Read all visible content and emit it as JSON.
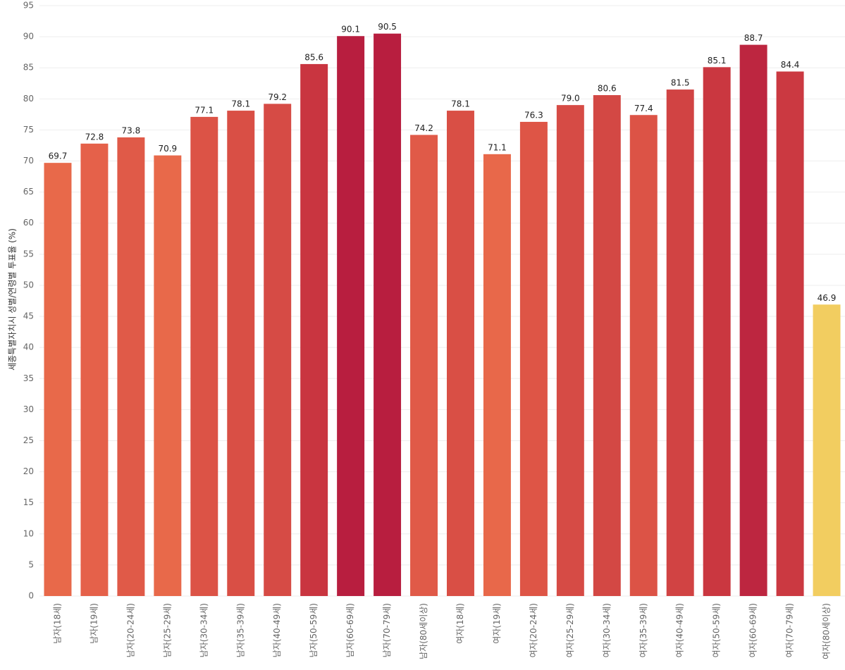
{
  "chart_data": {
    "type": "bar",
    "y_label": "세종특별자치시 성별/연령별 투표율 (%)",
    "categories": [
      "남자(18세)",
      "남자(19세)",
      "남자(20-24세)",
      "남자(25-29세)",
      "남자(30-34세)",
      "남자(35-39세)",
      "남자(40-49세)",
      "남자(50-59세)",
      "남자(60-69세)",
      "남자(70-79세)",
      "남자(80세이상)",
      "여자(18세)",
      "여자(19세)",
      "여자(20-24세)",
      "여자(25-29세)",
      "여자(30-34세)",
      "여자(35-39세)",
      "여자(40-49세)",
      "여자(50-59세)",
      "여자(60-69세)",
      "여자(70-79세)",
      "여자(80세이상)"
    ],
    "values": [
      69.7,
      72.8,
      73.8,
      70.9,
      77.1,
      78.1,
      79.2,
      85.6,
      90.1,
      90.5,
      74.2,
      78.1,
      71.1,
      76.3,
      79.0,
      80.6,
      77.4,
      81.5,
      85.1,
      88.7,
      84.4,
      46.9
    ],
    "value_labels": [
      "69.7",
      "72.8",
      "73.8",
      "70.9",
      "77.1",
      "78.1",
      "79.2",
      "85.6",
      "90.1",
      "90.5",
      "74.2",
      "78.1",
      "71.1",
      "76.3",
      "79.0",
      "80.6",
      "77.4",
      "81.5",
      "85.1",
      "88.7",
      "84.4",
      "46.9"
    ],
    "colors": [
      "#e8694a",
      "#e5614a",
      "#e05a48",
      "#e8694a",
      "#dc5346",
      "#d94f45",
      "#d64b45",
      "#c93540",
      "#b81e3f",
      "#b81e3f",
      "#e05a48",
      "#d94f45",
      "#e8684a",
      "#de5546",
      "#d64b45",
      "#d34844",
      "#dc5346",
      "#d14343",
      "#ca3740",
      "#bd2640",
      "#cb3941",
      "#f2cd60"
    ],
    "ylim": [
      0,
      95
    ],
    "yticks": [
      0,
      5,
      10,
      15,
      20,
      25,
      30,
      35,
      40,
      45,
      50,
      55,
      60,
      65,
      70,
      75,
      80,
      85,
      90,
      95
    ],
    "grid": true
  }
}
